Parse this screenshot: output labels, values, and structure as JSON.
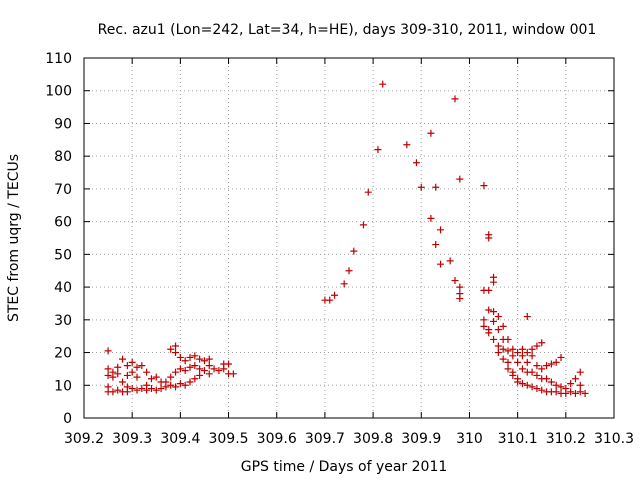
{
  "chart_data": {
    "type": "scatter",
    "title": "Rec. azu1 (Lon=242, Lat=34, h=HE), days 309-310, 2011, window 001",
    "xlabel": "GPS time / Days of year 2011",
    "ylabel": "STEC from uqrg / TECUs",
    "xlim": [
      309.2,
      310.3
    ],
    "ylim": [
      0,
      110
    ],
    "x_ticks": [
      "309.2",
      "309.3",
      "309.4",
      "309.5",
      "309.6",
      "309.7",
      "309.8",
      "309.9",
      "310",
      "310.1",
      "310.2",
      "310.3"
    ],
    "y_ticks": [
      "0",
      "10",
      "20",
      "30",
      "40",
      "50",
      "60",
      "70",
      "80",
      "90",
      "100",
      "110"
    ],
    "grid": true,
    "marker": "+",
    "color": "#cc0000",
    "series": [
      {
        "points": [
          [
            309.25,
            20.5
          ],
          [
            309.25,
            15
          ],
          [
            309.25,
            13
          ],
          [
            309.25,
            9.5
          ],
          [
            309.25,
            8
          ],
          [
            309.26,
            14
          ],
          [
            309.26,
            12.5
          ],
          [
            309.26,
            8
          ],
          [
            309.27,
            15.5
          ],
          [
            309.27,
            13.5
          ],
          [
            309.27,
            8.5
          ],
          [
            309.28,
            18
          ],
          [
            309.28,
            11
          ],
          [
            309.28,
            8
          ],
          [
            309.29,
            16
          ],
          [
            309.29,
            13
          ],
          [
            309.29,
            9.5
          ],
          [
            309.29,
            8
          ],
          [
            309.3,
            17
          ],
          [
            309.3,
            14
          ],
          [
            309.3,
            9
          ],
          [
            309.31,
            15.5
          ],
          [
            309.31,
            12.5
          ],
          [
            309.31,
            8.5
          ],
          [
            309.32,
            16
          ],
          [
            309.32,
            9
          ],
          [
            309.33,
            14
          ],
          [
            309.33,
            10
          ],
          [
            309.33,
            8.5
          ],
          [
            309.34,
            12
          ],
          [
            309.34,
            9
          ],
          [
            309.35,
            12.5
          ],
          [
            309.35,
            8.5
          ],
          [
            309.36,
            11
          ],
          [
            309.36,
            9
          ],
          [
            309.37,
            11
          ],
          [
            309.37,
            9.5
          ],
          [
            309.38,
            21
          ],
          [
            309.38,
            12.5
          ],
          [
            309.38,
            10
          ],
          [
            309.39,
            22
          ],
          [
            309.39,
            20
          ],
          [
            309.39,
            14
          ],
          [
            309.39,
            9.5
          ],
          [
            309.4,
            18.5
          ],
          [
            309.4,
            15
          ],
          [
            309.4,
            10.5
          ],
          [
            309.41,
            17.5
          ],
          [
            309.41,
            14.5
          ],
          [
            309.41,
            10
          ],
          [
            309.42,
            18.5
          ],
          [
            309.42,
            15.5
          ],
          [
            309.42,
            11
          ],
          [
            309.43,
            19
          ],
          [
            309.43,
            16
          ],
          [
            309.43,
            12
          ],
          [
            309.44,
            18
          ],
          [
            309.44,
            15
          ],
          [
            309.44,
            13
          ],
          [
            309.45,
            17.5
          ],
          [
            309.45,
            14.5
          ],
          [
            309.46,
            18
          ],
          [
            309.46,
            16
          ],
          [
            309.46,
            13.5
          ],
          [
            309.47,
            15
          ],
          [
            309.48,
            14.5
          ],
          [
            309.49,
            16.5
          ],
          [
            309.49,
            15
          ],
          [
            309.5,
            16.5
          ],
          [
            309.5,
            13.5
          ],
          [
            309.51,
            13.5
          ],
          [
            309.7,
            36
          ],
          [
            309.71,
            36
          ],
          [
            309.72,
            37.5
          ],
          [
            309.74,
            41
          ],
          [
            309.75,
            45
          ],
          [
            309.76,
            51
          ],
          [
            309.78,
            59
          ],
          [
            309.79,
            69
          ],
          [
            309.81,
            82
          ],
          [
            309.82,
            102
          ],
          [
            309.87,
            83.5
          ],
          [
            309.89,
            78
          ],
          [
            309.9,
            70.5
          ],
          [
            309.92,
            87
          ],
          [
            309.92,
            61
          ],
          [
            309.93,
            70.5
          ],
          [
            309.93,
            53
          ],
          [
            309.94,
            57.5
          ],
          [
            309.94,
            47
          ],
          [
            309.96,
            48
          ],
          [
            309.97,
            97.5
          ],
          [
            309.97,
            42
          ],
          [
            309.98,
            40
          ],
          [
            309.98,
            73
          ],
          [
            309.98,
            38
          ],
          [
            309.98,
            36.5
          ],
          [
            310.03,
            71
          ],
          [
            310.03,
            39
          ],
          [
            310.03,
            30
          ],
          [
            310.03,
            28
          ],
          [
            310.04,
            39
          ],
          [
            310.04,
            33
          ],
          [
            310.04,
            27
          ],
          [
            310.04,
            26
          ],
          [
            310.04,
            56
          ],
          [
            310.04,
            55
          ],
          [
            310.05,
            32.5
          ],
          [
            310.05,
            29.5
          ],
          [
            310.05,
            43
          ],
          [
            310.05,
            41.5
          ],
          [
            310.05,
            24
          ],
          [
            310.06,
            31
          ],
          [
            310.06,
            27
          ],
          [
            310.06,
            22
          ],
          [
            310.06,
            20
          ],
          [
            310.07,
            28
          ],
          [
            310.07,
            24
          ],
          [
            310.07,
            21
          ],
          [
            310.07,
            18
          ],
          [
            310.08,
            24
          ],
          [
            310.08,
            20.5
          ],
          [
            310.08,
            17
          ],
          [
            310.08,
            15
          ],
          [
            310.09,
            21
          ],
          [
            310.09,
            19
          ],
          [
            310.09,
            14
          ],
          [
            310.09,
            13
          ],
          [
            310.1,
            20
          ],
          [
            310.1,
            17
          ],
          [
            310.1,
            12
          ],
          [
            310.1,
            11
          ],
          [
            310.11,
            21
          ],
          [
            310.11,
            19
          ],
          [
            310.11,
            15
          ],
          [
            310.11,
            10.5
          ],
          [
            310.12,
            31
          ],
          [
            310.12,
            20
          ],
          [
            310.12,
            17
          ],
          [
            310.12,
            14
          ],
          [
            310.12,
            10
          ],
          [
            310.13,
            21
          ],
          [
            310.13,
            19
          ],
          [
            310.13,
            14
          ],
          [
            310.13,
            9.5
          ],
          [
            310.14,
            22
          ],
          [
            310.14,
            16
          ],
          [
            310.14,
            13
          ],
          [
            310.14,
            9
          ],
          [
            310.15,
            23
          ],
          [
            310.15,
            15
          ],
          [
            310.15,
            12
          ],
          [
            310.15,
            8.5
          ],
          [
            310.16,
            16
          ],
          [
            310.16,
            12
          ],
          [
            310.16,
            8
          ],
          [
            310.17,
            16.5
          ],
          [
            310.17,
            11
          ],
          [
            310.17,
            8
          ],
          [
            310.18,
            17
          ],
          [
            310.18,
            10
          ],
          [
            310.18,
            8
          ],
          [
            310.19,
            18.5
          ],
          [
            310.19,
            9.5
          ],
          [
            310.19,
            7.5
          ],
          [
            310.2,
            9
          ],
          [
            310.2,
            7.5
          ],
          [
            310.21,
            10.5
          ],
          [
            310.21,
            8
          ],
          [
            310.22,
            12
          ],
          [
            310.22,
            7.5
          ],
          [
            310.23,
            14
          ],
          [
            310.23,
            10
          ],
          [
            310.23,
            8
          ],
          [
            310.24,
            7.5
          ]
        ]
      }
    ]
  }
}
